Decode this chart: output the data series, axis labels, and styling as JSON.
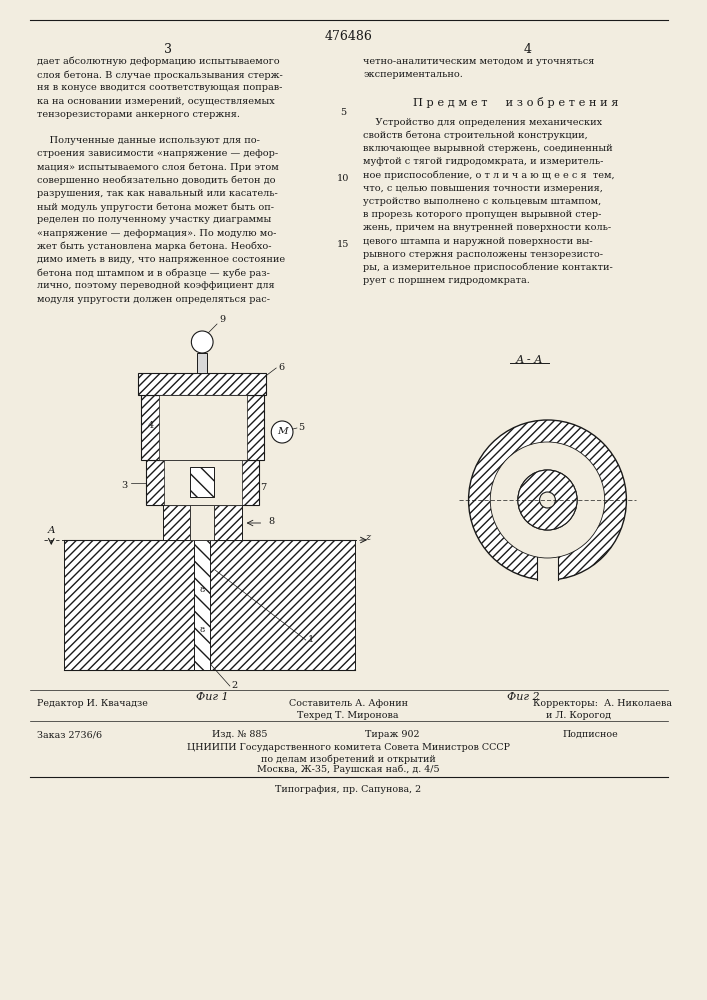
{
  "patent_number": "476486",
  "page_left": "3",
  "page_right": "4",
  "col_left_text": [
    "дает абсолютную деформацию испытываемого",
    "слоя бетона. В случае проскальзывания стерж-",
    "ня в конусе вводится соответствующая поправ-",
    "ка на основании измерений, осуществляемых",
    "тензорезисторами анкерного стержня.",
    "",
    "    Полученные данные используют для по-",
    "строения зависимости «напряжение — дефор-",
    "мация» испытываемого слоя бетона. При этом",
    "совершенно необязательно доводить бетон до",
    "разрушения, так как навальный или касатель-",
    "ный модуль упругости бетона может быть оп-",
    "ределен по полученному участку диаграммы",
    "«напряжение — деформация». По модулю мо-",
    "жет быть установлена марка бетона. Необхо-",
    "димо иметь в виду, что напряженное состояние",
    "бетона под штампом и в образце — кубе раз-",
    "лично, поэтому переводной коэффициент для",
    "модуля упругости должен определяться рас-"
  ],
  "line_number_5": "5",
  "line_number_10": "10",
  "line_number_15": "15",
  "col_right_text_top": [
    "четно-аналитическим методом и уточняться",
    "экспериментально."
  ],
  "subject_heading": "П р е д м е т     и з о б р е т е н и я",
  "col_right_text_body": [
    "    Устройство для определения механических",
    "свойств бетона строительной конструкции,",
    "включающее вырывной стержень, соединенный",
    "муфтой с тягой гидродомкрата, и измеритель-",
    "ное приспособление, о т л и ч а ю щ е е с я  тем,",
    "что, с целью повышения точности измерения,",
    "устройство выполнено с кольцевым штампом,",
    "в прорезь которого пропущен вырывной стер-",
    "жень, причем на внутренней поверхности коль-",
    "цевого штампа и наружной поверхности вы-",
    "рывного стержня расположены тензорезисто-",
    "ры, а измерительное приспособление контакти-",
    "рует с поршнем гидродомкрата."
  ],
  "fig1_label": "Фиг 1",
  "fig2_label": "Фиг 2",
  "section_label": "А - А",
  "editor_label": "Редактор И. Квачадзе",
  "composer_label": "Составитель А. Афонин",
  "tech_label": "Техред Т. Миронова",
  "corrector_label": "Корректоры:  А. Николаева",
  "corrector2_label": "и Л. Корогод",
  "order_label": "Заказ 2736/6",
  "izd_label": "Изд. № 885",
  "tirazh_label": "Тираж 902",
  "podpisnoe_label": "Подписное",
  "cniip_label": "ЦНИИПИ Государственного комитета Совета Министров СССР",
  "cniip_label2": "по делам изобретений и открытий",
  "cniip_label3": "Москва, Ж-35, Раушская наб., д. 4/5",
  "tipografia_label": "Типография, пр. Сапунова, 2",
  "bg_color": "#f2ede0",
  "text_color": "#1a1a1a",
  "hatch_color": "#555555"
}
